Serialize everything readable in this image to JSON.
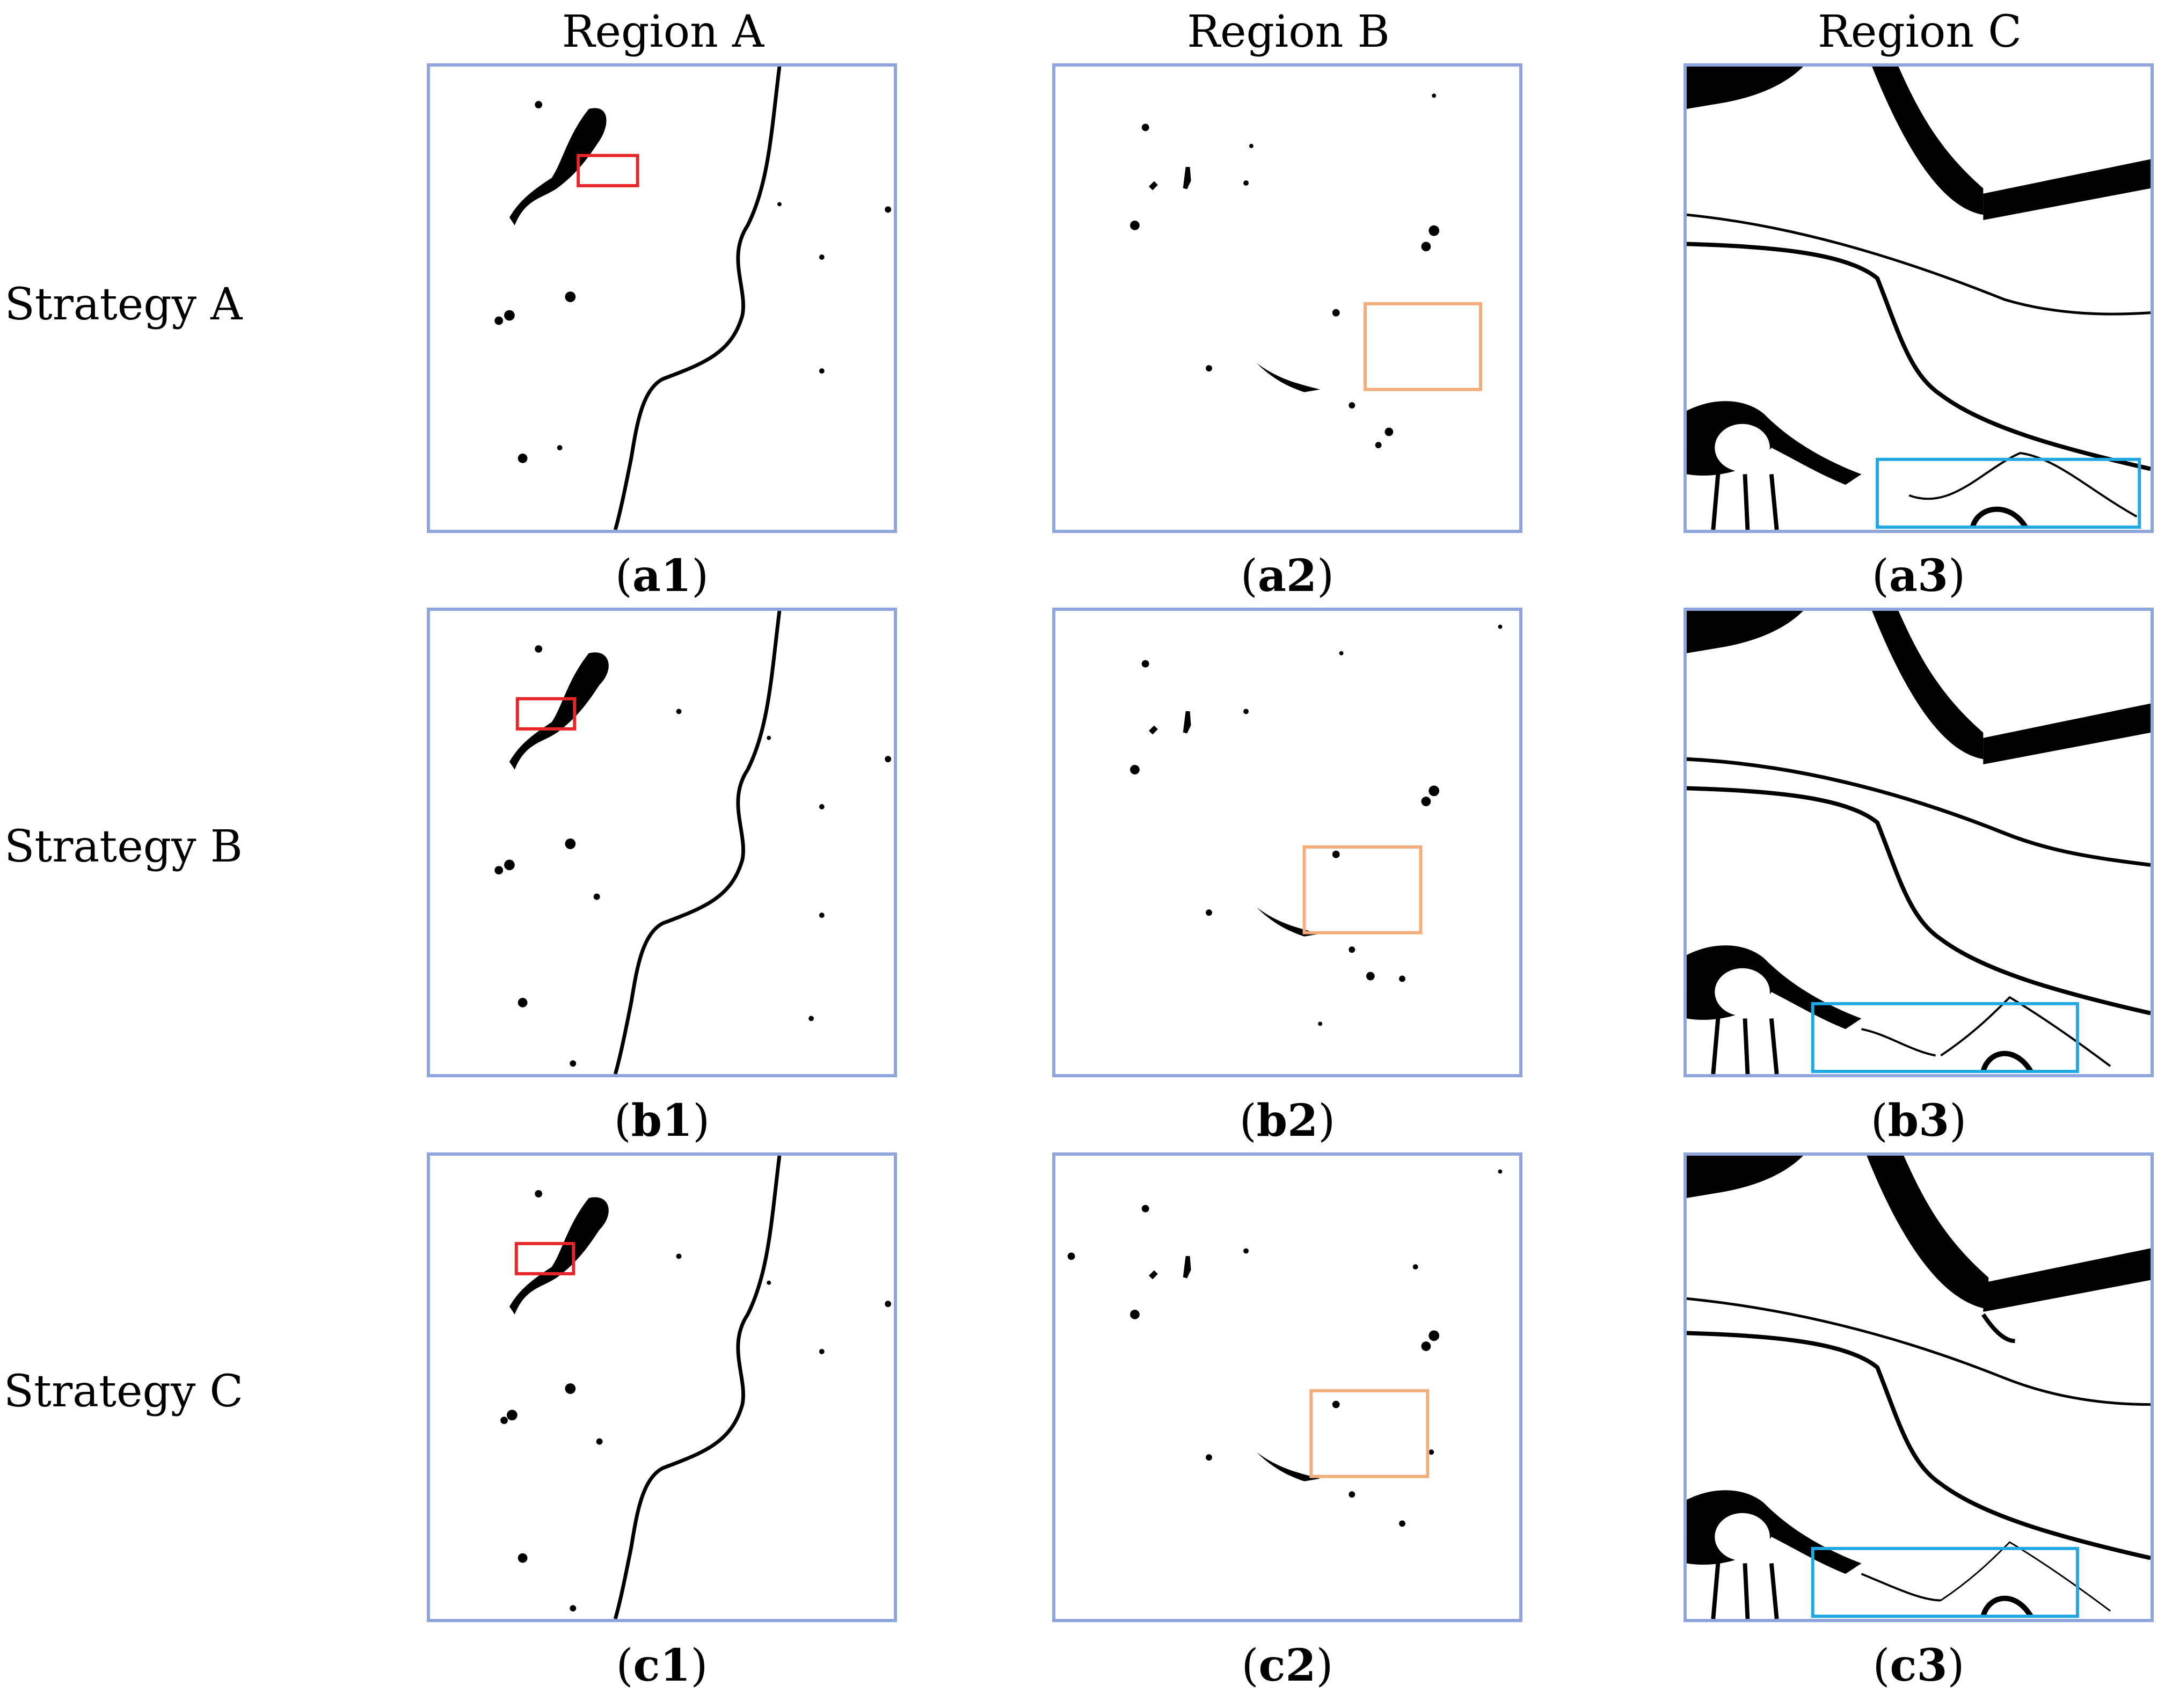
{
  "columns": [
    "Region A",
    "Region B",
    "Region C"
  ],
  "rows": [
    "Strategy A",
    "Strategy B",
    "Strategy C"
  ],
  "panels": [
    {
      "id": "a1",
      "letter": "a",
      "num": "1"
    },
    {
      "id": "a2",
      "letter": "a",
      "num": "2"
    },
    {
      "id": "a3",
      "letter": "a",
      "num": "3"
    },
    {
      "id": "b1",
      "letter": "b",
      "num": "1"
    },
    {
      "id": "b2",
      "letter": "b",
      "num": "2"
    },
    {
      "id": "b3",
      "letter": "b",
      "num": "3"
    },
    {
      "id": "c1",
      "letter": "c",
      "num": "1"
    },
    {
      "id": "c2",
      "letter": "c",
      "num": "2"
    },
    {
      "id": "c3",
      "letter": "c",
      "num": "3"
    }
  ],
  "colors": {
    "panel_border": "#8ea6dc",
    "box_region_a": "#e8262a",
    "box_region_b": "#f3ac7b",
    "box_region_c": "#21a8e3"
  }
}
